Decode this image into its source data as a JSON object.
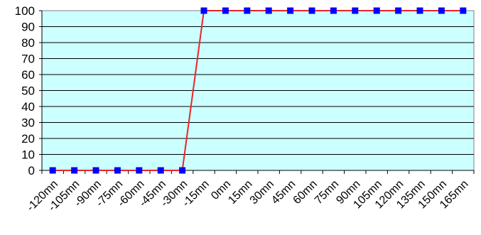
{
  "chart_data": {
    "type": "line",
    "title": "",
    "xlabel": "",
    "ylabel": "",
    "categories": [
      "-120mn",
      "-105mn",
      "-90mn",
      "-75mn",
      "-60mn",
      "-45mn",
      "-30mn",
      "-15mn",
      "0mn",
      "15mn",
      "30mn",
      "45mn",
      "60mn",
      "75mn",
      "90mn",
      "105mn",
      "120mn",
      "135mn",
      "150mn",
      "165mn"
    ],
    "series": [
      {
        "values": [
          0,
          0,
          0,
          0,
          0,
          0,
          0,
          100,
          100,
          100,
          100,
          100,
          100,
          100,
          100,
          100,
          100,
          100,
          100,
          100
        ],
        "line_color": "#e8252a",
        "marker_color": "#0000ff",
        "marker": "square"
      }
    ],
    "ylim": [
      0,
      100
    ],
    "yticks": [
      0,
      10,
      20,
      30,
      40,
      50,
      60,
      70,
      80,
      90,
      100
    ],
    "grid": true,
    "legend": "none",
    "plot_background": "#ccffff",
    "gridline_color": "#000000"
  }
}
